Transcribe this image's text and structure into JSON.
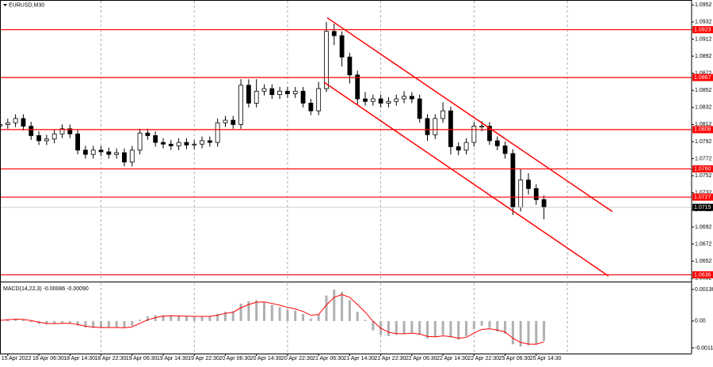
{
  "chart_data": [
    {
      "type": "candlestick",
      "title": "EURUSD,M30",
      "color": "#000000",
      "x": [
        1,
        2,
        3,
        4,
        5,
        6,
        7,
        8,
        9,
        10,
        11,
        12,
        13,
        14,
        15,
        16,
        17,
        18,
        19,
        20,
        21,
        22,
        23,
        24,
        25,
        26,
        27,
        28,
        29,
        30,
        31,
        32,
        33,
        34,
        35,
        36,
        37,
        38,
        39,
        40,
        41,
        42,
        43,
        44,
        45,
        46,
        47,
        48,
        49,
        50,
        51,
        52,
        53,
        54,
        55,
        56,
        57,
        58,
        59,
        60,
        61,
        62,
        63,
        64,
        65,
        66,
        67,
        68,
        69,
        70,
        71
      ],
      "open": [
        1.081,
        1.0812,
        1.0814,
        1.0819,
        1.081,
        1.0799,
        1.0793,
        1.0795,
        1.0801,
        1.0807,
        1.0801,
        1.0782,
        1.0777,
        1.0782,
        1.078,
        1.0777,
        1.0779,
        1.0768,
        1.0782,
        1.0802,
        1.0799,
        1.0791,
        1.0789,
        1.0787,
        1.0791,
        1.0788,
        1.0789,
        1.0793,
        1.0791,
        1.0814,
        1.0817,
        1.0812,
        1.0858,
        1.0837,
        1.0851,
        1.0854,
        1.0847,
        1.0851,
        1.0848,
        1.0851,
        1.0837,
        1.0828,
        1.0854,
        1.0921,
        1.0916,
        1.0891,
        1.087,
        1.0842,
        1.0839,
        1.0842,
        1.0837,
        1.0839,
        1.0842,
        1.0845,
        1.0842,
        1.0819,
        1.08,
        1.0819,
        1.0828,
        1.0786,
        1.0782,
        1.0791,
        1.081,
        1.081,
        1.0793,
        1.0787,
        1.0778,
        1.0715,
        1.0747,
        1.0737,
        1.0724
      ],
      "high": [
        1.0817,
        1.0819,
        1.0824,
        1.0824,
        1.0815,
        1.0804,
        1.08,
        1.0806,
        1.0812,
        1.0812,
        1.0806,
        1.0787,
        1.0787,
        1.0787,
        1.0785,
        1.0784,
        1.0784,
        1.0787,
        1.0807,
        1.0807,
        1.0804,
        1.0796,
        1.0794,
        1.0796,
        1.0796,
        1.0794,
        1.0798,
        1.0798,
        1.0819,
        1.0822,
        1.0822,
        1.0865,
        1.0865,
        1.0865,
        1.0859,
        1.0859,
        1.0856,
        1.0856,
        1.0856,
        1.0856,
        1.0842,
        1.0862,
        1.0932,
        1.093,
        1.0921,
        1.0896,
        1.0875,
        1.085,
        1.0847,
        1.0847,
        1.0844,
        1.0847,
        1.0851,
        1.085,
        1.0847,
        1.0824,
        1.0824,
        1.0838,
        1.0833,
        1.0791,
        1.0796,
        1.0815,
        1.0816,
        1.0815,
        1.0798,
        1.0792,
        1.0783,
        1.076,
        1.0755,
        1.0742,
        1.0729
      ],
      "low": [
        1.0805,
        1.0807,
        1.0809,
        1.0805,
        1.0794,
        1.0788,
        1.0788,
        1.079,
        1.0796,
        1.0796,
        1.0777,
        1.0772,
        1.0772,
        1.0775,
        1.0772,
        1.0772,
        1.0763,
        1.0763,
        1.0777,
        1.0794,
        1.0786,
        1.0784,
        1.0782,
        1.0782,
        1.0783,
        1.0783,
        1.0784,
        1.0786,
        1.0786,
        1.0809,
        1.0807,
        1.0807,
        1.0832,
        1.0832,
        1.0846,
        1.0842,
        1.0842,
        1.0843,
        1.0843,
        1.0832,
        1.0823,
        1.0823,
        1.085,
        1.0905,
        1.088,
        1.086,
        1.0835,
        1.0834,
        1.0834,
        1.0832,
        1.0832,
        1.0834,
        1.0837,
        1.0837,
        1.0814,
        1.0793,
        1.0795,
        1.0814,
        1.0777,
        1.0776,
        1.0777,
        1.0786,
        1.0804,
        1.0788,
        1.0782,
        1.0772,
        1.0706,
        1.071,
        1.073,
        1.0718,
        1.0701
      ],
      "close": [
        1.0812,
        1.0814,
        1.0819,
        1.081,
        1.0799,
        1.0793,
        1.0795,
        1.0801,
        1.0807,
        1.0801,
        1.0782,
        1.0777,
        1.0782,
        1.078,
        1.0777,
        1.0779,
        1.0768,
        1.0782,
        1.0802,
        1.0799,
        1.0791,
        1.0789,
        1.0787,
        1.0791,
        1.0788,
        1.0789,
        1.0793,
        1.0791,
        1.0814,
        1.0817,
        1.0812,
        1.0858,
        1.0837,
        1.0851,
        1.0854,
        1.0847,
        1.0851,
        1.0848,
        1.0851,
        1.0837,
        1.0828,
        1.0854,
        1.0921,
        1.0916,
        1.0891,
        1.087,
        1.0842,
        1.0839,
        1.0842,
        1.0837,
        1.0839,
        1.0842,
        1.0845,
        1.0842,
        1.0819,
        1.08,
        1.0819,
        1.0828,
        1.0786,
        1.0782,
        1.0791,
        1.081,
        1.081,
        1.0793,
        1.0787,
        1.0778,
        1.0715,
        1.0747,
        1.0737,
        1.0724,
        1.0715
      ],
      "xlim": [
        1,
        90
      ],
      "ylim": [
        1.0629,
        1.0955
      ],
      "yticks": [
        1.0952,
        1.0932,
        1.0912,
        1.0892,
        1.0872,
        1.0852,
        1.0832,
        1.0812,
        1.0792,
        1.0772,
        1.0752,
        1.0732,
        1.0712,
        1.0692,
        1.0672,
        1.0652,
        1.0632
      ],
      "xticks": [
        {
          "value": 2,
          "label": "15 Apr 2022"
        },
        {
          "value": 6,
          "label": "18 Apr 06:30"
        },
        {
          "value": 10,
          "label": "18 Apr 14:30"
        },
        {
          "value": 14,
          "label": "18 Apr 22:30"
        },
        {
          "value": 18,
          "label": "19 Apr 06:30"
        },
        {
          "value": 22,
          "label": "19 Apr 14:30"
        },
        {
          "value": 26,
          "label": "19 Apr 22:30"
        },
        {
          "value": 30,
          "label": "20 Apr 06:30"
        },
        {
          "value": 34,
          "label": "20 Apr 14:30"
        },
        {
          "value": 38,
          "label": "20 Apr 22:30"
        },
        {
          "value": 42,
          "label": "21 Apr 06:30"
        },
        {
          "value": 46,
          "label": "21 Apr 14:30"
        },
        {
          "value": 50,
          "label": "21 Apr 22:30"
        },
        {
          "value": 54,
          "label": "22 Apr 06:30"
        },
        {
          "value": 58,
          "label": "22 Apr 14:30"
        },
        {
          "value": 62,
          "label": "22 Apr 22:30"
        },
        {
          "value": 66,
          "label": "25 Apr 06:30"
        },
        {
          "value": 70,
          "label": "25 Apr 14:30"
        }
      ],
      "xgrid": [
        14,
        26,
        38,
        50,
        62,
        74
      ],
      "levels": {
        "color": "#ff0000",
        "values": [
          {
            "value": 1.0923,
            "label": "1.0923"
          },
          {
            "value": 1.0867,
            "label": "1.0867"
          },
          {
            "value": 1.0806,
            "label": "1.0806"
          },
          {
            "value": 1.076,
            "label": "1.0760"
          },
          {
            "value": 1.0727,
            "label": "1.0727"
          },
          {
            "value": 1.0636,
            "label": "1.0636"
          }
        ]
      },
      "channels": {
        "color": "#ff0000",
        "lines": [
          {
            "x": [
              43.1,
              79.8
            ],
            "y": [
              1.0937,
              1.071
            ]
          },
          {
            "x": [
              42.7,
              79.3
            ],
            "y": [
              1.08615,
              1.06346
            ]
          }
        ]
      },
      "last_price": 1.0715
    },
    {
      "type": "macd",
      "title": "MACD(14,22,3) -0.00086 -0.00090",
      "x": [
        1,
        2,
        3,
        4,
        5,
        6,
        7,
        8,
        9,
        10,
        11,
        12,
        13,
        14,
        15,
        16,
        17,
        18,
        19,
        20,
        21,
        22,
        23,
        24,
        25,
        26,
        27,
        28,
        29,
        30,
        31,
        32,
        33,
        34,
        35,
        36,
        37,
        38,
        39,
        40,
        41,
        42,
        43,
        44,
        45,
        46,
        47,
        48,
        49,
        50,
        51,
        52,
        53,
        54,
        55,
        56,
        57,
        58,
        59,
        60,
        61,
        62,
        63,
        64,
        65,
        66,
        67,
        68,
        69,
        70,
        71
      ],
      "histogram": {
        "color": "#b0b0b0",
        "values": [
          5e-05,
          8e-05,
          0.0001,
          5e-05,
          -5e-05,
          -0.00012,
          -0.00015,
          -0.00012,
          -8e-05,
          -0.0001,
          -0.0002,
          -0.00028,
          -0.0003,
          -0.0003,
          -0.00028,
          -0.00027,
          -0.0003,
          -0.0002,
          5e-05,
          0.0002,
          0.00025,
          0.00026,
          0.00024,
          0.00022,
          0.0002,
          0.00019,
          0.0002,
          0.0002,
          0.0003,
          0.0004,
          0.00042,
          0.00075,
          0.00085,
          0.0009,
          0.00082,
          0.0007,
          0.0006,
          0.0005,
          0.00045,
          0.0003,
          0.0001,
          0.0003,
          0.0011,
          0.00135,
          0.00125,
          0.0009,
          0.0004,
          5e-05,
          -0.0004,
          -0.0006,
          -0.00065,
          -0.0006,
          -0.00055,
          -0.0005,
          -0.0006,
          -0.00075,
          -0.0007,
          -0.0006,
          -0.0007,
          -0.0008,
          -0.00065,
          -0.00035,
          -0.0002,
          -0.0003,
          -0.00045,
          -0.00055,
          -0.001,
          -0.0011,
          -0.00105,
          -0.001,
          -0.00086
        ]
      },
      "signal": {
        "color": "#ff0000",
        "values": [
          3e-05,
          5e-05,
          8e-05,
          7e-05,
          2e-05,
          -5e-05,
          -0.0001,
          -0.00011,
          -0.0001,
          -0.0001,
          -0.00015,
          -0.00022,
          -0.00026,
          -0.00028,
          -0.00028,
          -0.00028,
          -0.00029,
          -0.00025,
          -0.0001,
          5e-05,
          0.00015,
          0.00021,
          0.00023,
          0.00022,
          0.00021,
          0.0002,
          0.0002,
          0.0002,
          0.00025,
          0.00033,
          0.00038,
          0.00057,
          0.00071,
          0.00081,
          0.00082,
          0.00076,
          0.00068,
          0.00059,
          0.00052,
          0.00041,
          0.00025,
          0.00028,
          0.00069,
          0.00102,
          0.00114,
          0.00102,
          0.00071,
          0.00038,
          -1e-05,
          -0.00031,
          -0.00048,
          -0.00054,
          -0.00055,
          -0.00052,
          -0.00056,
          -0.00066,
          -0.00068,
          -0.00064,
          -0.00067,
          -0.00074,
          -0.0007,
          -0.00052,
          -0.00036,
          -0.00033,
          -0.00039,
          -0.00047,
          -0.00074,
          -0.00092,
          -0.00099,
          -0.001,
          -0.0009
        ]
      },
      "ylim": [
        -0.0014,
        0.00163
      ],
      "yticks": [
        0.00136,
        {
          "value": 0,
          "label": "0.00"
        },
        -0.00116
      ]
    }
  ]
}
